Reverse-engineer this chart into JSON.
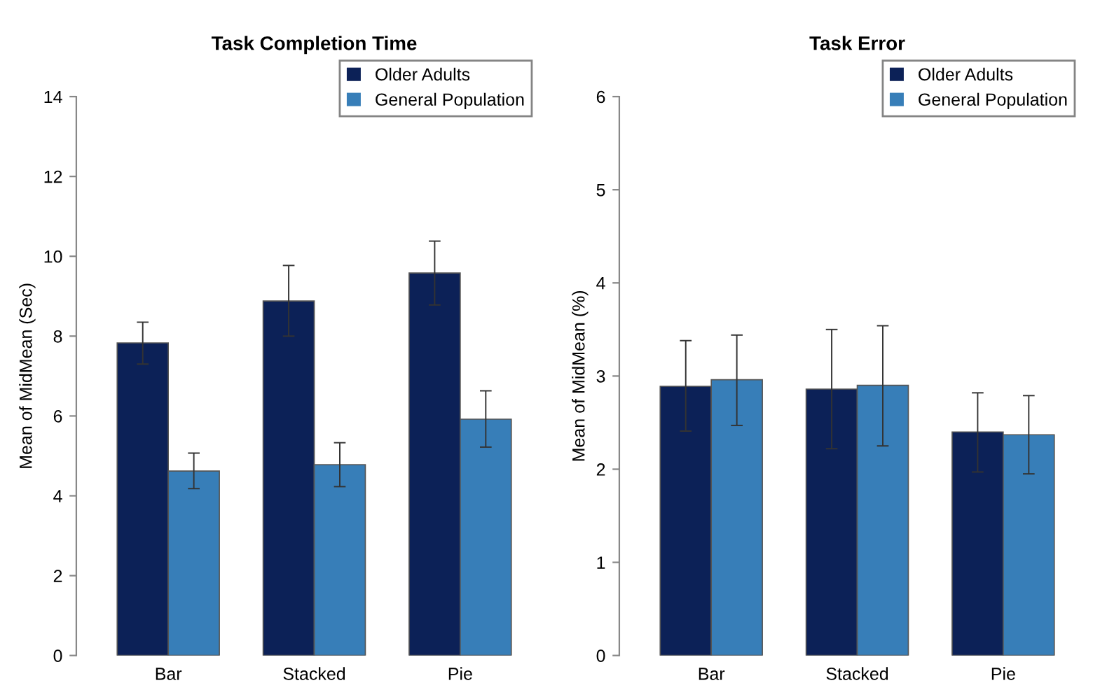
{
  "chart_data": [
    {
      "type": "bar",
      "title": "Task Completion Time",
      "ylabel": "Mean of MidMean (Sec)",
      "categories": [
        "Bar",
        "Stacked",
        "Pie"
      ],
      "ylim": [
        0,
        14
      ],
      "yticks": [
        0,
        2,
        4,
        6,
        8,
        10,
        12,
        14
      ],
      "grid": false,
      "legend": "top right",
      "series": [
        {
          "name": "Older Adults",
          "color": "#0c2157",
          "values": [
            7.83,
            8.88,
            9.58
          ],
          "errors": [
            [
              7.3,
              8.35
            ],
            [
              8.0,
              9.77
            ],
            [
              8.78,
              10.38
            ]
          ]
        },
        {
          "name": "General Population",
          "color": "#377eb8",
          "values": [
            4.62,
            4.78,
            5.92
          ],
          "errors": [
            [
              4.18,
              5.07
            ],
            [
              4.23,
              5.33
            ],
            [
              5.22,
              6.63
            ]
          ]
        }
      ]
    },
    {
      "type": "bar",
      "title": "Task Error",
      "ylabel": "Mean of MidMean (%)",
      "categories": [
        "Bar",
        "Stacked",
        "Pie"
      ],
      "ylim": [
        0,
        6
      ],
      "yticks": [
        0,
        1,
        2,
        3,
        4,
        5,
        6
      ],
      "grid": false,
      "legend": "top right",
      "series": [
        {
          "name": "Older Adults",
          "color": "#0c2157",
          "values": [
            2.89,
            2.86,
            2.4
          ],
          "errors": [
            [
              2.41,
              3.38
            ],
            [
              2.22,
              3.5
            ],
            [
              1.97,
              2.82
            ]
          ]
        },
        {
          "name": "General Population",
          "color": "#377eb8",
          "values": [
            2.96,
            2.9,
            2.37
          ],
          "errors": [
            [
              2.47,
              3.44
            ],
            [
              2.25,
              3.54
            ],
            [
              1.95,
              2.79
            ]
          ]
        }
      ]
    }
  ]
}
